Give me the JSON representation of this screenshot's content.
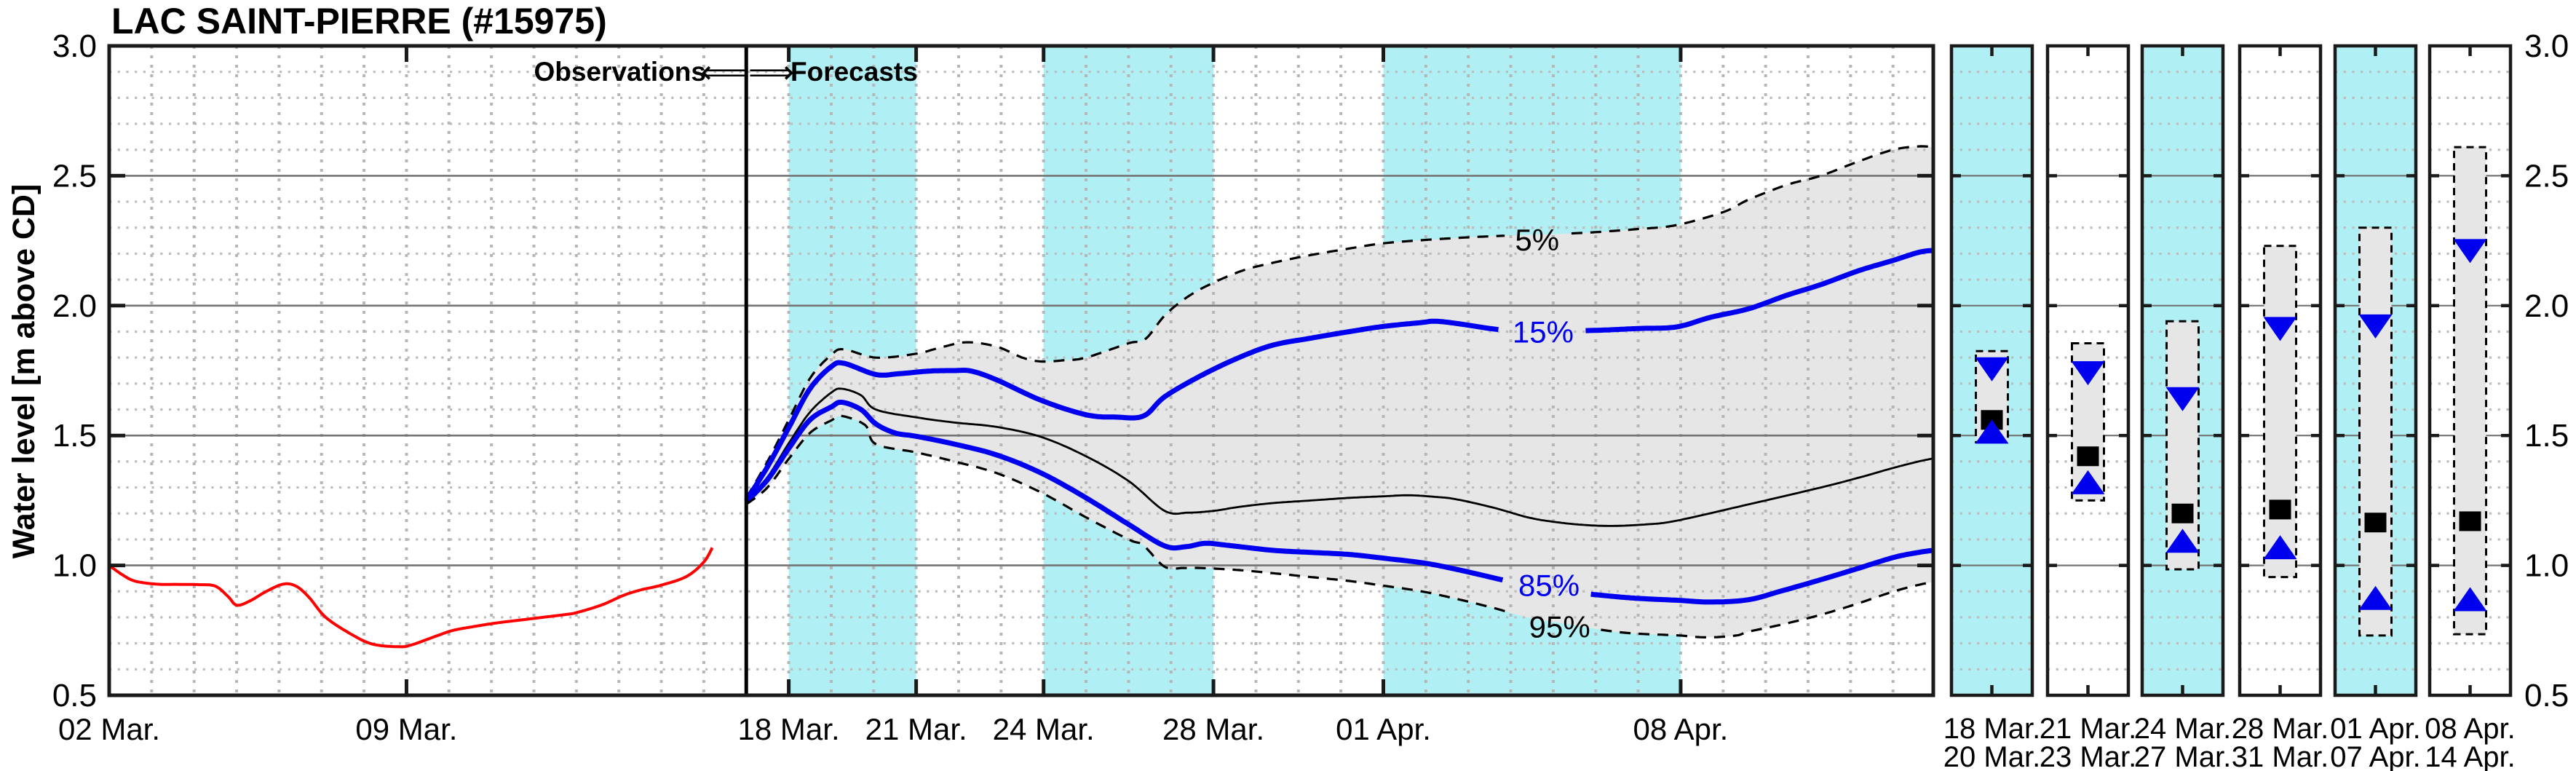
{
  "title": "LAC SAINT-PIERRE (#15975)",
  "header": {
    "observations": "Observations",
    "arrows": "⟸⟹",
    "forecasts": "Forecasts"
  },
  "colors": {
    "forecast_blue": "#0000ee",
    "observation_red": "#ff0000",
    "band_cyan": "#b0f0f4",
    "fan_gray": "#e6e6e6",
    "grid_major": "#747474",
    "grid_minor": "#bdbdbd",
    "grid_daily": "#b6b6b6",
    "frame": "#1a1a1a",
    "text": "#000000"
  },
  "chart_data": {
    "type": "line",
    "title": "LAC SAINT-PIERRE (#15975)",
    "ylabel": "Water level [m above CD]",
    "xlabel": "",
    "ylim": [
      0.5,
      3.0
    ],
    "y_major_step": 0.5,
    "y_minor_step": 0.1,
    "x_unit": "days since 02 Mar",
    "xlim": [
      0,
      42.95
    ],
    "divider_day": 15,
    "grid": true,
    "y_ticks": [
      {
        "label": "3.0",
        "value": 3.0
      },
      {
        "label": "2.5",
        "value": 2.5
      },
      {
        "label": "2.0",
        "value": 2.0
      },
      {
        "label": "1.5",
        "value": 1.5
      },
      {
        "label": "1.0",
        "value": 1.0
      },
      {
        "label": "0.5",
        "value": 0.5
      }
    ],
    "x_ticks": [
      {
        "label": "02 Mar.",
        "day": 0
      },
      {
        "label": "09 Mar.",
        "day": 7
      },
      {
        "label": "18 Mar.",
        "day": 16
      },
      {
        "label": "21 Mar.",
        "day": 19
      },
      {
        "label": "24 Mar.",
        "day": 22
      },
      {
        "label": "28 Mar.",
        "day": 26
      },
      {
        "label": "01 Apr.",
        "day": 30
      },
      {
        "label": "08 Apr.",
        "day": 37
      }
    ],
    "highlight_bands_days": [
      [
        16,
        19
      ],
      [
        22,
        26
      ],
      [
        30,
        37
      ]
    ],
    "observed": {
      "name": "observed water level",
      "color": "#ff0000",
      "points": [
        [
          0,
          1.0
        ],
        [
          0.3,
          0.965
        ],
        [
          0.6,
          0.94
        ],
        [
          1.1,
          0.928
        ],
        [
          1.6,
          0.927
        ],
        [
          2.1,
          0.926
        ],
        [
          2.5,
          0.92
        ],
        [
          2.8,
          0.88
        ],
        [
          3.0,
          0.847
        ],
        [
          3.3,
          0.862
        ],
        [
          3.7,
          0.9
        ],
        [
          4.1,
          0.928
        ],
        [
          4.4,
          0.92
        ],
        [
          4.7,
          0.878
        ],
        [
          5.1,
          0.8
        ],
        [
          5.7,
          0.735
        ],
        [
          6.2,
          0.697
        ],
        [
          6.8,
          0.687
        ],
        [
          7.1,
          0.693
        ],
        [
          7.7,
          0.728
        ],
        [
          8.1,
          0.75
        ],
        [
          8.6,
          0.765
        ],
        [
          9.1,
          0.778
        ],
        [
          9.7,
          0.79
        ],
        [
          10.2,
          0.8
        ],
        [
          10.7,
          0.81
        ],
        [
          11.0,
          0.818
        ],
        [
          11.6,
          0.848
        ],
        [
          12.1,
          0.884
        ],
        [
          12.5,
          0.905
        ],
        [
          13.0,
          0.924
        ],
        [
          13.6,
          0.958
        ],
        [
          14.0,
          1.013
        ],
        [
          14.2,
          1.068
        ]
      ]
    },
    "forecast_series": [
      {
        "key": "q5",
        "label": "5%",
        "style": "dashed",
        "color": "#000000",
        "width": 3.2,
        "label_pos": {
          "x_day": 33.62,
          "value": 2.255
        },
        "label_gap_days": [
          32.9,
          34.4
        ],
        "points": [
          [
            15,
            1.26
          ],
          [
            15.5,
            1.4
          ],
          [
            16,
            1.56
          ],
          [
            16.5,
            1.72
          ],
          [
            17,
            1.81
          ],
          [
            17.3,
            1.832
          ],
          [
            18.05,
            1.8
          ],
          [
            19,
            1.815
          ],
          [
            19.6,
            1.84
          ],
          [
            20.2,
            1.859
          ],
          [
            20.9,
            1.842
          ],
          [
            21.5,
            1.8
          ],
          [
            21.95,
            1.785
          ],
          [
            22.5,
            1.79
          ],
          [
            23,
            1.8
          ],
          [
            24,
            1.855
          ],
          [
            24.4,
            1.872
          ],
          [
            24.9,
            1.97
          ],
          [
            25.6,
            2.055
          ],
          [
            26.6,
            2.13
          ],
          [
            27.4,
            2.165
          ],
          [
            28.3,
            2.195
          ],
          [
            29.2,
            2.22
          ],
          [
            30,
            2.24
          ],
          [
            31,
            2.253
          ],
          [
            32,
            2.263
          ],
          [
            33,
            2.27
          ],
          [
            34,
            2.275
          ],
          [
            35,
            2.283
          ],
          [
            36,
            2.295
          ],
          [
            36.9,
            2.31
          ],
          [
            38,
            2.36
          ],
          [
            38.6,
            2.408
          ],
          [
            39.5,
            2.465
          ],
          [
            40.3,
            2.5
          ],
          [
            41.2,
            2.556
          ],
          [
            42,
            2.6
          ],
          [
            42.6,
            2.613
          ],
          [
            42.95,
            2.61
          ]
        ]
      },
      {
        "key": "q15",
        "label": "15%",
        "style": "solid",
        "color": "#0000ee",
        "width": 7,
        "label_pos": {
          "x_day": 33.76,
          "value": 1.9
        },
        "label_gap_days": [
          32.75,
          34.75
        ],
        "points": [
          [
            15,
            1.25
          ],
          [
            15.5,
            1.38
          ],
          [
            16,
            1.53
          ],
          [
            16.5,
            1.68
          ],
          [
            17,
            1.765
          ],
          [
            17.3,
            1.778
          ],
          [
            18.05,
            1.735
          ],
          [
            18.6,
            1.738
          ],
          [
            19.3,
            1.748
          ],
          [
            19.9,
            1.75
          ],
          [
            20.3,
            1.748
          ],
          [
            20.9,
            1.714
          ],
          [
            21.95,
            1.635
          ],
          [
            23,
            1.58
          ],
          [
            23.7,
            1.571
          ],
          [
            24.35,
            1.575
          ],
          [
            24.85,
            1.649
          ],
          [
            25.7,
            1.73
          ],
          [
            26.6,
            1.8
          ],
          [
            27.4,
            1.848
          ],
          [
            28.3,
            1.875
          ],
          [
            29.2,
            1.9
          ],
          [
            30,
            1.92
          ],
          [
            30.9,
            1.935
          ],
          [
            31.2,
            1.94
          ],
          [
            31.7,
            1.932
          ],
          [
            32.6,
            1.91
          ],
          [
            33.3,
            1.9
          ],
          [
            34.3,
            1.902
          ],
          [
            35.2,
            1.906
          ],
          [
            36,
            1.912
          ],
          [
            36.9,
            1.918
          ],
          [
            37.7,
            1.955
          ],
          [
            38.6,
            1.988
          ],
          [
            39.5,
            2.04
          ],
          [
            40.3,
            2.081
          ],
          [
            41.2,
            2.135
          ],
          [
            42,
            2.174
          ],
          [
            42.6,
            2.205
          ],
          [
            42.95,
            2.213
          ]
        ]
      },
      {
        "key": "q50",
        "label": "",
        "style": "solid",
        "color": "#000000",
        "width": 2.8,
        "label_pos": null,
        "label_gap_days": null,
        "points": [
          [
            15,
            1.25
          ],
          [
            15.5,
            1.34
          ],
          [
            16,
            1.47
          ],
          [
            16.5,
            1.59
          ],
          [
            17,
            1.665
          ],
          [
            17.25,
            1.68
          ],
          [
            17.7,
            1.655
          ],
          [
            18.05,
            1.6
          ],
          [
            19,
            1.57
          ],
          [
            19.9,
            1.55
          ],
          [
            20.9,
            1.533
          ],
          [
            21.95,
            1.494
          ],
          [
            23,
            1.42
          ],
          [
            24,
            1.325
          ],
          [
            24.85,
            1.21
          ],
          [
            25.4,
            1.203
          ],
          [
            26,
            1.21
          ],
          [
            26.6,
            1.225
          ],
          [
            27.4,
            1.24
          ],
          [
            28.3,
            1.25
          ],
          [
            29.2,
            1.26
          ],
          [
            30,
            1.266
          ],
          [
            30.6,
            1.27
          ],
          [
            31.2,
            1.264
          ],
          [
            31.7,
            1.255
          ],
          [
            32.6,
            1.222
          ],
          [
            33.4,
            1.185
          ],
          [
            34,
            1.168
          ],
          [
            34.7,
            1.156
          ],
          [
            35.4,
            1.152
          ],
          [
            36.2,
            1.158
          ],
          [
            36.9,
            1.172
          ],
          [
            38.6,
            1.235
          ],
          [
            40.3,
            1.3
          ],
          [
            41.2,
            1.338
          ],
          [
            42,
            1.375
          ],
          [
            42.6,
            1.4
          ],
          [
            42.95,
            1.412
          ]
        ]
      },
      {
        "key": "q85",
        "label": "85%",
        "style": "solid",
        "color": "#0000ee",
        "width": 7,
        "label_pos": {
          "x_day": 33.9,
          "value": 0.925
        },
        "label_gap_days": [
          32.85,
          34.85
        ],
        "points": [
          [
            15,
            1.245
          ],
          [
            15.5,
            1.33
          ],
          [
            16,
            1.45
          ],
          [
            16.5,
            1.56
          ],
          [
            17,
            1.61
          ],
          [
            17.25,
            1.628
          ],
          [
            17.7,
            1.6
          ],
          [
            18.05,
            1.545
          ],
          [
            18.5,
            1.51
          ],
          [
            19,
            1.497
          ],
          [
            19.9,
            1.467
          ],
          [
            20.9,
            1.425
          ],
          [
            21.95,
            1.355
          ],
          [
            23,
            1.26
          ],
          [
            24,
            1.158
          ],
          [
            24.85,
            1.075
          ],
          [
            25.35,
            1.072
          ],
          [
            25.8,
            1.085
          ],
          [
            26.3,
            1.078
          ],
          [
            27.4,
            1.058
          ],
          [
            28.3,
            1.05
          ],
          [
            29.2,
            1.042
          ],
          [
            30.1,
            1.026
          ],
          [
            31,
            1.008
          ],
          [
            31.8,
            0.982
          ],
          [
            32.7,
            0.948
          ],
          [
            33.4,
            0.922
          ],
          [
            34.3,
            0.9
          ],
          [
            35.2,
            0.884
          ],
          [
            36,
            0.873
          ],
          [
            36.9,
            0.866
          ],
          [
            37.7,
            0.859
          ],
          [
            38.6,
            0.868
          ],
          [
            39.4,
            0.903
          ],
          [
            40.3,
            0.945
          ],
          [
            41.15,
            0.987
          ],
          [
            42,
            1.03
          ],
          [
            42.6,
            1.05
          ],
          [
            42.95,
            1.058
          ]
        ]
      },
      {
        "key": "q95",
        "label": "95%",
        "style": "dashed",
        "color": "#000000",
        "width": 3.2,
        "label_pos": {
          "x_day": 34.15,
          "value": 0.765
        },
        "label_gap_days": [
          33.0,
          35.1
        ],
        "points": [
          [
            15,
            1.235
          ],
          [
            15.5,
            1.3
          ],
          [
            16,
            1.41
          ],
          [
            16.5,
            1.51
          ],
          [
            17,
            1.558
          ],
          [
            17.25,
            1.575
          ],
          [
            17.8,
            1.54
          ],
          [
            18.05,
            1.467
          ],
          [
            19,
            1.435
          ],
          [
            19.9,
            1.4
          ],
          [
            20.9,
            1.355
          ],
          [
            21.95,
            1.28
          ],
          [
            23,
            1.185
          ],
          [
            24,
            1.1
          ],
          [
            24.35,
            1.077
          ],
          [
            24.85,
            0.995
          ],
          [
            25.3,
            0.99
          ],
          [
            25.7,
            0.99
          ],
          [
            26.6,
            0.982
          ],
          [
            27.4,
            0.97
          ],
          [
            28.3,
            0.955
          ],
          [
            29.2,
            0.94
          ],
          [
            30,
            0.922
          ],
          [
            30.9,
            0.9
          ],
          [
            31.7,
            0.872
          ],
          [
            32.6,
            0.836
          ],
          [
            33.4,
            0.8
          ],
          [
            34.4,
            0.772
          ],
          [
            35.3,
            0.748
          ],
          [
            36,
            0.737
          ],
          [
            36.9,
            0.731
          ],
          [
            37.6,
            0.723
          ],
          [
            38.3,
            0.73
          ],
          [
            38.6,
            0.745
          ],
          [
            39.4,
            0.773
          ],
          [
            40.3,
            0.81
          ],
          [
            41.15,
            0.852
          ],
          [
            42,
            0.899
          ],
          [
            42.6,
            0.925
          ],
          [
            42.95,
            0.936
          ]
        ]
      }
    ]
  },
  "panels": {
    "right_y_ticks": [
      {
        "label": "3.0",
        "value": 3.0
      },
      {
        "label": "2.5",
        "value": 2.5
      },
      {
        "label": "2.0",
        "value": 2.0
      },
      {
        "label": "1.5",
        "value": 1.5
      },
      {
        "label": "1.0",
        "value": 1.0
      },
      {
        "label": "0.5",
        "value": 0.5
      }
    ],
    "items": [
      {
        "date_from": "18 Mar.",
        "date_to": "20 Mar.",
        "highlight": true,
        "range_q5_q95": [
          1.475,
          1.825
        ],
        "q15": 1.755,
        "q50": 1.56,
        "q85": 1.515
      },
      {
        "date_from": "21 Mar.",
        "date_to": "23 Mar.",
        "highlight": false,
        "range_q5_q95": [
          1.25,
          1.855
        ],
        "q15": 1.74,
        "q50": 1.42,
        "q85": 1.32
      },
      {
        "date_from": "24 Mar.",
        "date_to": "27 Mar.",
        "highlight": true,
        "range_q5_q95": [
          0.985,
          1.94
        ],
        "q15": 1.64,
        "q50": 1.2,
        "q85": 1.095
      },
      {
        "date_from": "28 Mar.",
        "date_to": "31 Mar.",
        "highlight": false,
        "range_q5_q95": [
          0.955,
          2.23
        ],
        "q15": 1.91,
        "q50": 1.215,
        "q85": 1.07
      },
      {
        "date_from": "01 Apr.",
        "date_to": "07 Apr.",
        "highlight": true,
        "range_q5_q95": [
          0.73,
          2.3
        ],
        "q15": 1.92,
        "q50": 1.165,
        "q85": 0.875
      },
      {
        "date_from": "08 Apr.",
        "date_to": "14 Apr.",
        "highlight": false,
        "range_q5_q95": [
          0.735,
          2.61
        ],
        "q15": 2.21,
        "q50": 1.17,
        "q85": 0.87
      }
    ]
  }
}
